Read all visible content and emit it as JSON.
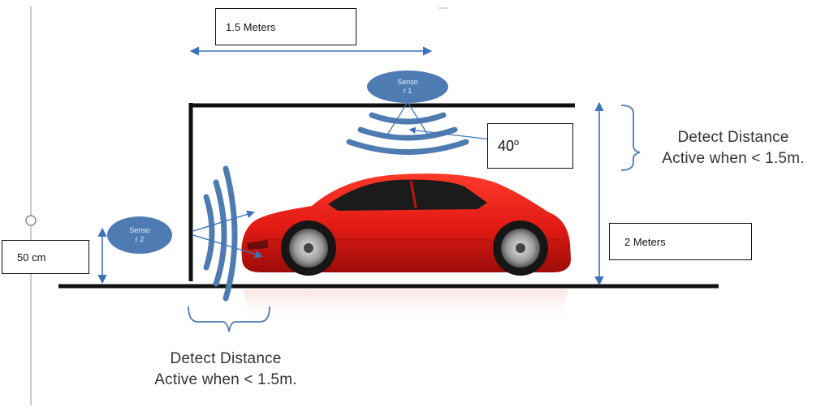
{
  "labels": {
    "width_measure": "1.5 Meters",
    "height_measure": "2 Meters",
    "mount_height": "50 cm",
    "angle_value": "40",
    "angle_unit": "o"
  },
  "sensors": {
    "top": {
      "line1": "Senso",
      "line2": "r 1"
    },
    "side": {
      "line1": "Senso",
      "line2": "r 2"
    }
  },
  "captions": {
    "right": {
      "line1": "Detect Distance",
      "line2": "Active when < 1.5m."
    },
    "bottom": {
      "line1": "Detect Distance",
      "line2": "Active when < 1.5m."
    }
  },
  "colors": {
    "structure": "#111111",
    "sensor_blue": "#4f7bb3",
    "dimension_blue": "#3d73b8",
    "car_red": "#e01a14"
  }
}
